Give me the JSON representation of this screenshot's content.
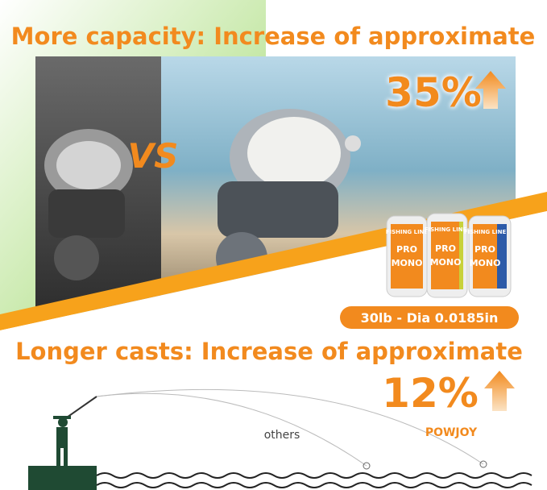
{
  "top": {
    "title": "More capacity: Increase of approximate",
    "percent": "35%",
    "versus": "VS"
  },
  "product": {
    "spool_brand": "FISHING LINE",
    "spool_line": "PRO",
    "spool_type": "MONO",
    "spec": "30lb - Dia 0.0185in"
  },
  "bottom": {
    "title": "Longer casts: Increase of approximate",
    "percent": "12%",
    "others": "others",
    "brand": "POWJOY"
  }
}
